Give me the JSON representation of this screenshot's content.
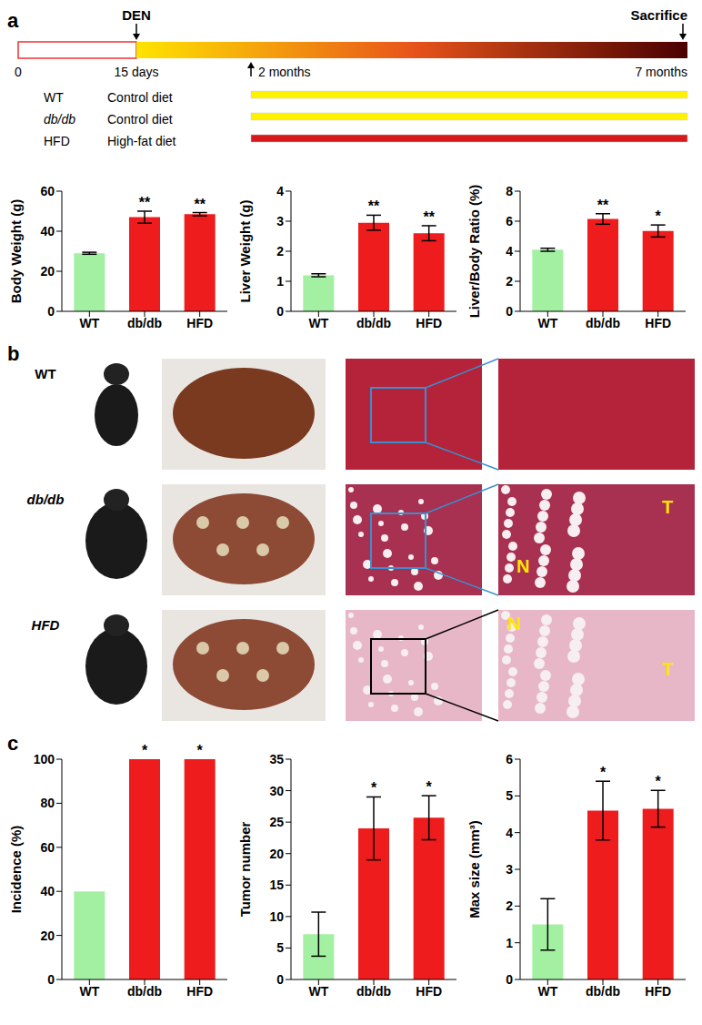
{
  "panel_labels": [
    "a",
    "b",
    "c"
  ],
  "timeline": {
    "events": [
      "DEN",
      "Sacrifice"
    ],
    "times": [
      "0",
      "15 days",
      "2 months",
      "7 months"
    ],
    "rows": [
      {
        "group": "WT",
        "diet": "Control diet",
        "color": "#fff200"
      },
      {
        "group": "db/db",
        "diet": "Control diet",
        "color": "#fff200"
      },
      {
        "group": "HFD",
        "diet": "High-fat diet",
        "color": "#d7191c"
      }
    ]
  },
  "photos": {
    "rows": [
      {
        "group": "WT",
        "annotations": []
      },
      {
        "group": "db/db",
        "annotations": [
          "N",
          "T"
        ]
      },
      {
        "group": "HFD",
        "annotations": [
          "N",
          "T"
        ]
      }
    ]
  },
  "chart_data": [
    {
      "type": "bar",
      "y_label": "Body Weight (g)",
      "categories": [
        "WT",
        "db/db",
        "HFD"
      ],
      "values": [
        29,
        47,
        48.5
      ],
      "errors": [
        0.5,
        3,
        0.8
      ],
      "colors": [
        "#a3f0a3",
        "#ee1c1c",
        "#ee1c1c"
      ],
      "ylim": [
        0,
        60
      ],
      "yticks": [
        0,
        20,
        40,
        60
      ],
      "significance": [
        null,
        "**",
        "**"
      ]
    },
    {
      "type": "bar",
      "y_label": "Liver Weight (g)",
      "categories": [
        "WT",
        "db/db",
        "HFD"
      ],
      "values": [
        1.2,
        2.95,
        2.6
      ],
      "errors": [
        0.05,
        0.25,
        0.25
      ],
      "colors": [
        "#a3f0a3",
        "#ee1c1c",
        "#ee1c1c"
      ],
      "ylim": [
        0,
        4
      ],
      "yticks": [
        0,
        1,
        2,
        3,
        4
      ],
      "significance": [
        null,
        "**",
        "**"
      ]
    },
    {
      "type": "bar",
      "y_label": "Liver/Body Ratio (%)",
      "categories": [
        "WT",
        "db/db",
        "HFD"
      ],
      "values": [
        4.1,
        6.15,
        5.35
      ],
      "errors": [
        0.1,
        0.35,
        0.4
      ],
      "colors": [
        "#a3f0a3",
        "#ee1c1c",
        "#ee1c1c"
      ],
      "ylim": [
        0,
        8
      ],
      "yticks": [
        0,
        2,
        4,
        6,
        8
      ],
      "significance": [
        null,
        "**",
        "*"
      ]
    },
    {
      "type": "bar",
      "y_label": "Incidence (%)",
      "categories": [
        "WT",
        "db/db",
        "HFD"
      ],
      "values": [
        40,
        100,
        100
      ],
      "colors": [
        "#a3f0a3",
        "#ee1c1c",
        "#ee1c1c"
      ],
      "ylim": [
        0,
        100
      ],
      "yticks": [
        0,
        20,
        40,
        60,
        80,
        100
      ],
      "significance": [
        null,
        "*",
        "*"
      ]
    },
    {
      "type": "bar",
      "y_label": "Tumor number",
      "categories": [
        "WT",
        "db/db",
        "HFD"
      ],
      "values": [
        7.2,
        24,
        25.7
      ],
      "errors": [
        3.5,
        5,
        3.5
      ],
      "colors": [
        "#a3f0a3",
        "#ee1c1c",
        "#ee1c1c"
      ],
      "ylim": [
        0,
        35
      ],
      "yticks": [
        0,
        5,
        10,
        15,
        20,
        25,
        30,
        35
      ],
      "significance": [
        null,
        "*",
        "*"
      ]
    },
    {
      "type": "bar",
      "y_label": "Max size (mm³)",
      "categories": [
        "WT",
        "db/db",
        "HFD"
      ],
      "values": [
        1.5,
        4.6,
        4.65
      ],
      "errors": [
        0.7,
        0.8,
        0.5
      ],
      "colors": [
        "#a3f0a3",
        "#ee1c1c",
        "#ee1c1c"
      ],
      "ylim": [
        0,
        6
      ],
      "yticks": [
        0,
        1,
        2,
        3,
        4,
        5,
        6
      ],
      "significance": [
        null,
        "*",
        "*"
      ]
    }
  ]
}
